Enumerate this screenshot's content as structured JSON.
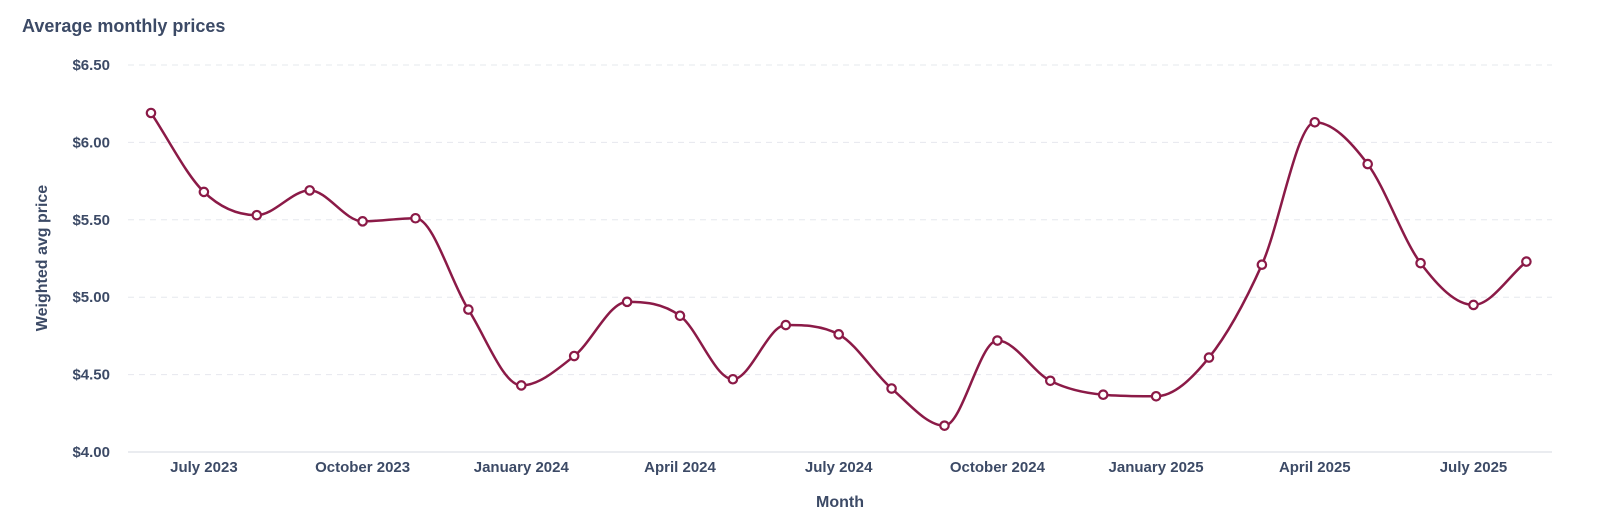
{
  "chart_data": {
    "type": "line",
    "title": "Average monthly prices",
    "xlabel": "Month",
    "ylabel": "Weighted avg price",
    "x": [
      "2023-06",
      "2023-07",
      "2023-08",
      "2023-09",
      "2023-10",
      "2023-11",
      "2023-12",
      "2024-01",
      "2024-02",
      "2024-03",
      "2024-04",
      "2024-05",
      "2024-06",
      "2024-07",
      "2024-08",
      "2024-09",
      "2024-10",
      "2024-11",
      "2024-12",
      "2025-01",
      "2025-02",
      "2025-03",
      "2025-04",
      "2025-05",
      "2025-06",
      "2025-07",
      "2025-08"
    ],
    "series": [
      {
        "values": [
          6.19,
          5.68,
          5.53,
          5.69,
          5.49,
          5.51,
          4.92,
          4.43,
          4.62,
          4.97,
          4.88,
          4.47,
          4.82,
          4.76,
          4.41,
          4.17,
          4.72,
          4.46,
          4.37,
          4.36,
          4.61,
          5.21,
          6.13,
          5.86,
          5.22,
          4.95,
          5.23
        ],
        "color": "#8b1a47"
      }
    ],
    "x_ticks": [
      {
        "label": "July 2023",
        "month_index": 1
      },
      {
        "label": "October 2023",
        "month_index": 4
      },
      {
        "label": "January 2024",
        "month_index": 7
      },
      {
        "label": "April 2024",
        "month_index": 10
      },
      {
        "label": "July 2024",
        "month_index": 13
      },
      {
        "label": "October 2024",
        "month_index": 16
      },
      {
        "label": "January 2025",
        "month_index": 19
      },
      {
        "label": "April 2025",
        "month_index": 22
      },
      {
        "label": "July 2025",
        "month_index": 25
      }
    ],
    "y_ticks": [
      {
        "label": "$4.00",
        "value": 4.0
      },
      {
        "label": "$4.50",
        "value": 4.5
      },
      {
        "label": "$5.00",
        "value": 5.0
      },
      {
        "label": "$5.50",
        "value": 5.5
      },
      {
        "label": "$6.00",
        "value": 6.0
      },
      {
        "label": "$6.50",
        "value": 6.5
      }
    ],
    "ylim": [
      4.0,
      6.5
    ],
    "grid": "horizontal-dashed",
    "legend": "none",
    "colors": {
      "line": "#8b1a47",
      "text": "#3c4a66",
      "grid": "#e6e8ee"
    }
  }
}
